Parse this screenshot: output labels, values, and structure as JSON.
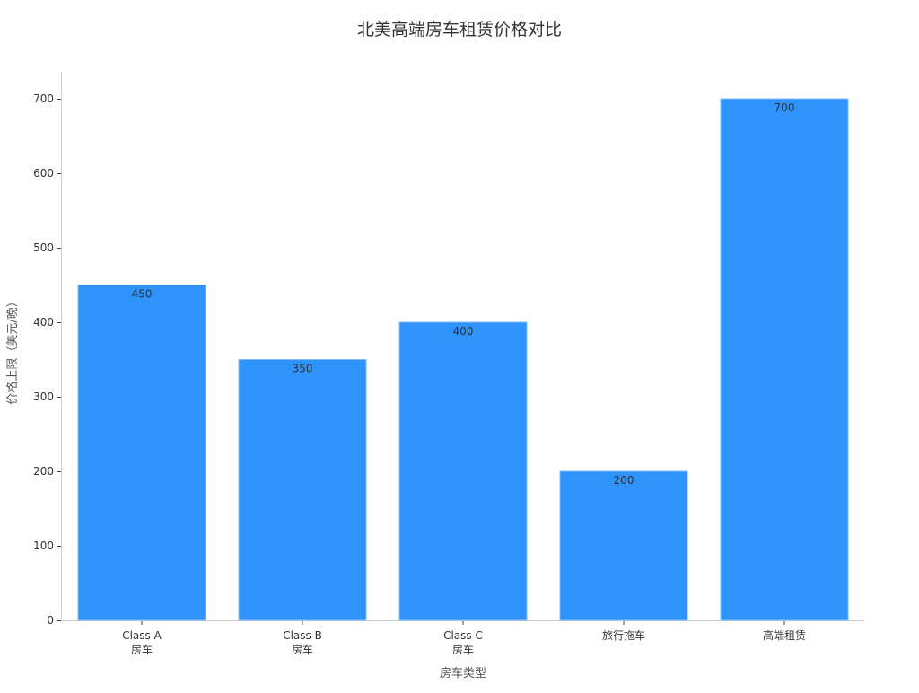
{
  "chart_data": {
    "type": "bar",
    "title": "北美高端房车租赁价格对比",
    "xlabel": "房车类型",
    "ylabel": "价格上限（美元/晚）",
    "categories": [
      "Class A\n房车",
      "Class B\n房车",
      "Class C\n房车",
      "旅行拖车",
      "高端租赁"
    ],
    "values": [
      450,
      350,
      400,
      200,
      700
    ],
    "data_labels": [
      "450",
      "350",
      "400",
      "200",
      "700"
    ],
    "ylim": [
      0,
      735
    ],
    "yticks": [
      0,
      100,
      200,
      300,
      400,
      500,
      600,
      700
    ],
    "grid": false,
    "bar_color": "#2E93FA",
    "legend": "none"
  }
}
